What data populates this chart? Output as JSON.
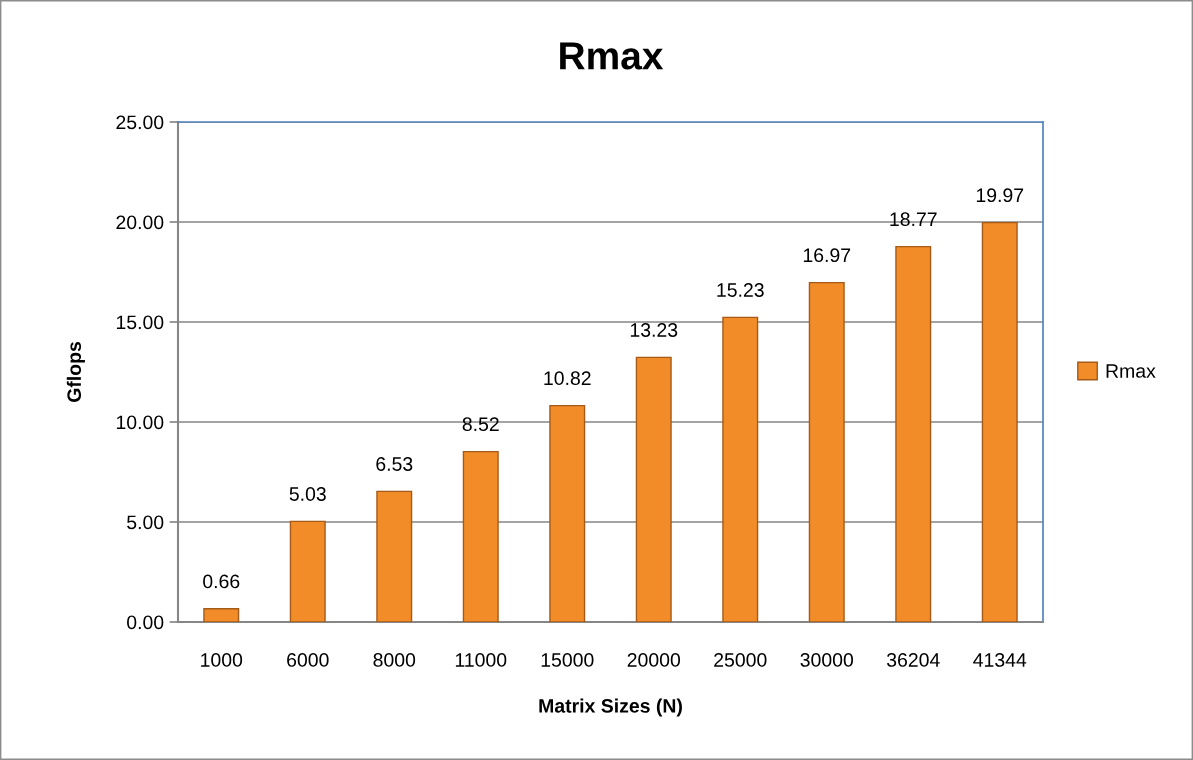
{
  "chart_data": {
    "type": "bar",
    "title": "Rmax",
    "xlabel": "Matrix Sizes (N)",
    "ylabel": "Gflops",
    "categories": [
      "1000",
      "6000",
      "8000",
      "11000",
      "15000",
      "20000",
      "25000",
      "30000",
      "36204",
      "41344"
    ],
    "series": [
      {
        "name": "Rmax",
        "color": "#f28c28",
        "values": [
          0.66,
          5.03,
          6.53,
          8.52,
          10.82,
          13.23,
          15.23,
          16.97,
          18.77,
          19.97
        ]
      }
    ],
    "ylim": [
      0,
      25
    ],
    "yticks": [
      {
        "value": 0,
        "label": "0.00"
      },
      {
        "value": 5,
        "label": "5.00"
      },
      {
        "value": 10,
        "label": "10.00"
      },
      {
        "value": 15,
        "label": "15.00"
      },
      {
        "value": 20,
        "label": "20.00"
      },
      {
        "value": 25,
        "label": "25.00"
      }
    ],
    "grid": "y",
    "legend": "right",
    "data_labels": true
  }
}
